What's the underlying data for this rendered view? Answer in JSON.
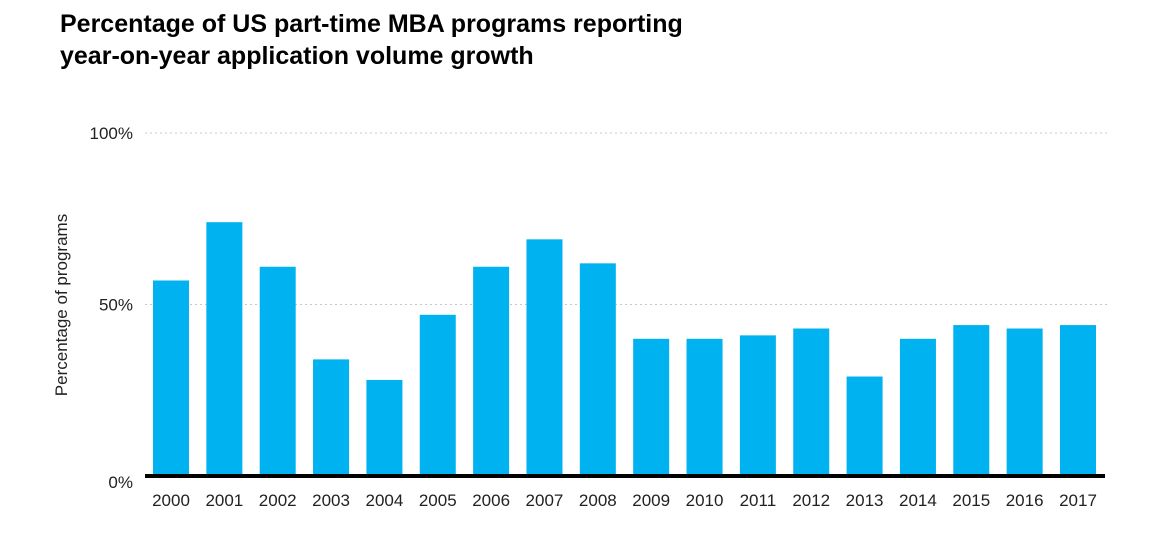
{
  "chart_data": {
    "type": "bar",
    "title_lines": [
      "Percentage of US part-time MBA programs reporting",
      "year-on-year application volume growth"
    ],
    "ylabel": "Percentage of programs",
    "xlabel": "",
    "ylim": [
      0,
      100
    ],
    "yticks": [
      {
        "value": 0,
        "label": "0%"
      },
      {
        "value": 50,
        "label": "50%"
      },
      {
        "value": 100,
        "label": "100%"
      }
    ],
    "grid": true,
    "bar_color": "#00b2ef",
    "categories": [
      "2000",
      "2001",
      "2002",
      "2003",
      "2004",
      "2005",
      "2006",
      "2007",
      "2008",
      "2009",
      "2010",
      "2011",
      "2012",
      "2013",
      "2014",
      "2015",
      "2016",
      "2017"
    ],
    "values": [
      57,
      74,
      61,
      34,
      28,
      47,
      61,
      69,
      62,
      40,
      40,
      41,
      43,
      29,
      40,
      44,
      43,
      44
    ]
  }
}
